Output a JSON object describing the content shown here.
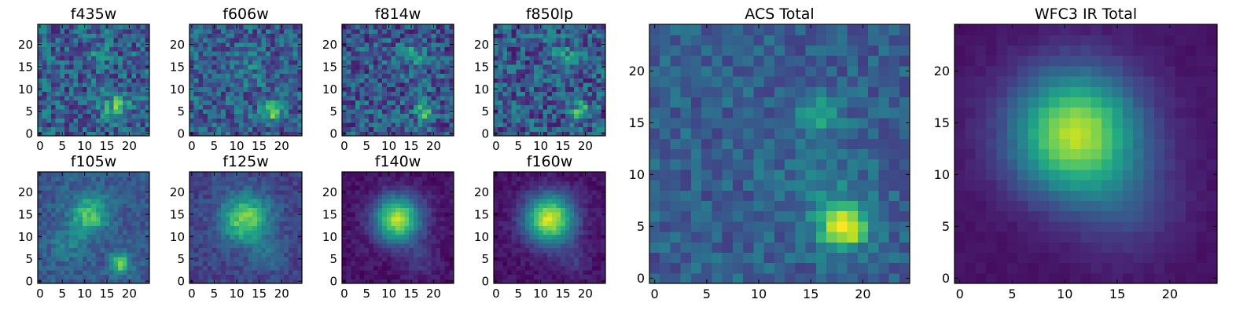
{
  "chart_data": [
    {
      "type": "heatmap",
      "title": "f435w",
      "colormap": "viridis",
      "grid_size": 25,
      "x_ticks": [
        0,
        5,
        10,
        15,
        20
      ],
      "y_ticks": [
        0,
        5,
        10,
        15,
        20
      ],
      "xlim": [
        -0.5,
        24.5
      ],
      "ylim": [
        -0.5,
        24.5
      ],
      "background": 0.3,
      "noise": 0.22,
      "peaks": [
        {
          "x": 17,
          "y": 6,
          "value": 0.35,
          "sigma": 2.2
        },
        {
          "x": 13,
          "y": 18,
          "value": 0.12,
          "sigma": 2.0
        }
      ]
    },
    {
      "type": "heatmap",
      "title": "f606w",
      "colormap": "viridis",
      "grid_size": 25,
      "x_ticks": [
        0,
        5,
        10,
        15,
        20
      ],
      "y_ticks": [
        0,
        5,
        10,
        15,
        20
      ],
      "xlim": [
        -0.5,
        24.5
      ],
      "ylim": [
        -0.5,
        24.5
      ],
      "background": 0.3,
      "noise": 0.2,
      "peaks": [
        {
          "x": 18,
          "y": 5,
          "value": 0.5,
          "sigma": 1.6
        },
        {
          "x": 12,
          "y": 15,
          "value": 0.1,
          "sigma": 2.5
        }
      ]
    },
    {
      "type": "heatmap",
      "title": "f814w",
      "colormap": "viridis",
      "grid_size": 25,
      "x_ticks": [
        0,
        5,
        10,
        15,
        20
      ],
      "y_ticks": [
        0,
        5,
        10,
        15,
        20
      ],
      "xlim": [
        -0.5,
        24.5
      ],
      "ylim": [
        -0.5,
        24.5
      ],
      "background": 0.28,
      "noise": 0.22,
      "peaks": [
        {
          "x": 18,
          "y": 5,
          "value": 0.45,
          "sigma": 1.5
        },
        {
          "x": 16,
          "y": 18,
          "value": 0.25,
          "sigma": 1.8
        }
      ]
    },
    {
      "type": "heatmap",
      "title": "f850lp",
      "colormap": "viridis",
      "grid_size": 25,
      "x_ticks": [
        0,
        5,
        10,
        15,
        20
      ],
      "y_ticks": [
        0,
        5,
        10,
        15,
        20
      ],
      "xlim": [
        -0.5,
        24.5
      ],
      "ylim": [
        -0.5,
        24.5
      ],
      "background": 0.28,
      "noise": 0.22,
      "peaks": [
        {
          "x": 19,
          "y": 5,
          "value": 0.35,
          "sigma": 1.6
        },
        {
          "x": 15,
          "y": 17,
          "value": 0.25,
          "sigma": 2.0
        }
      ]
    },
    {
      "type": "heatmap",
      "title": "f105w",
      "colormap": "viridis",
      "grid_size": 25,
      "x_ticks": [
        0,
        5,
        10,
        15,
        20
      ],
      "y_ticks": [
        0,
        5,
        10,
        15,
        20
      ],
      "xlim": [
        -0.5,
        24.5
      ],
      "ylim": [
        -0.5,
        24.5
      ],
      "background": 0.28,
      "noise": 0.1,
      "peaks": [
        {
          "x": 11,
          "y": 15,
          "value": 0.45,
          "sigma": 3.0
        },
        {
          "x": 18,
          "y": 4,
          "value": 0.5,
          "sigma": 1.6
        },
        {
          "x": 6,
          "y": 8,
          "value": 0.15,
          "sigma": 2.5
        }
      ]
    },
    {
      "type": "heatmap",
      "title": "f125w",
      "colormap": "viridis",
      "grid_size": 25,
      "x_ticks": [
        0,
        5,
        10,
        15,
        20
      ],
      "y_ticks": [
        0,
        5,
        10,
        15,
        20
      ],
      "xlim": [
        -0.5,
        24.5
      ],
      "ylim": [
        -0.5,
        24.5
      ],
      "background": 0.2,
      "noise": 0.08,
      "peaks": [
        {
          "x": 12,
          "y": 14,
          "value": 0.6,
          "sigma": 3.8
        },
        {
          "x": 17,
          "y": 6,
          "value": 0.15,
          "sigma": 2.5
        }
      ]
    },
    {
      "type": "heatmap",
      "title": "f140w",
      "colormap": "viridis",
      "grid_size": 25,
      "x_ticks": [
        0,
        5,
        10,
        15,
        20
      ],
      "y_ticks": [
        0,
        5,
        10,
        15,
        20
      ],
      "xlim": [
        -0.5,
        24.5
      ],
      "ylim": [
        -0.5,
        24.5
      ],
      "background": 0.05,
      "noise": 0.05,
      "peaks": [
        {
          "x": 12,
          "y": 14,
          "value": 0.85,
          "sigma": 3.6
        },
        {
          "x": 17,
          "y": 5,
          "value": 0.12,
          "sigma": 2.5
        }
      ]
    },
    {
      "type": "heatmap",
      "title": "f160w",
      "colormap": "viridis",
      "grid_size": 25,
      "x_ticks": [
        0,
        5,
        10,
        15,
        20
      ],
      "y_ticks": [
        0,
        5,
        10,
        15,
        20
      ],
      "xlim": [
        -0.5,
        24.5
      ],
      "ylim": [
        -0.5,
        24.5
      ],
      "background": 0.05,
      "noise": 0.05,
      "peaks": [
        {
          "x": 12,
          "y": 14,
          "value": 0.9,
          "sigma": 3.8
        },
        {
          "x": 17,
          "y": 5,
          "value": 0.12,
          "sigma": 2.5
        }
      ]
    },
    {
      "type": "heatmap",
      "title": "ACS Total",
      "colormap": "viridis",
      "grid_size": 25,
      "x_ticks": [
        0,
        5,
        10,
        15,
        20
      ],
      "y_ticks": [
        0,
        5,
        10,
        15,
        20
      ],
      "xlim": [
        -0.5,
        24.5
      ],
      "ylim": [
        -0.5,
        24.5
      ],
      "background": 0.3,
      "noise": 0.12,
      "peaks": [
        {
          "x": 18,
          "y": 5,
          "value": 0.7,
          "sigma": 1.6
        },
        {
          "x": 16,
          "y": 16,
          "value": 0.32,
          "sigma": 1.3
        },
        {
          "x": 16,
          "y": 9,
          "value": 0.1,
          "sigma": 3.0
        }
      ]
    },
    {
      "type": "heatmap",
      "title": "WFC3 IR Total",
      "colormap": "viridis",
      "grid_size": 25,
      "x_ticks": [
        0,
        5,
        10,
        15,
        20
      ],
      "y_ticks": [
        0,
        5,
        10,
        15,
        20
      ],
      "xlim": [
        -0.5,
        24.5
      ],
      "ylim": [
        -0.5,
        24.5
      ],
      "background": 0.05,
      "noise": 0.02,
      "peaks": [
        {
          "x": 11,
          "y": 14,
          "value": 0.85,
          "sigma": 4.2
        },
        {
          "x": 16,
          "y": 7,
          "value": 0.15,
          "sigma": 3.5
        }
      ]
    }
  ]
}
